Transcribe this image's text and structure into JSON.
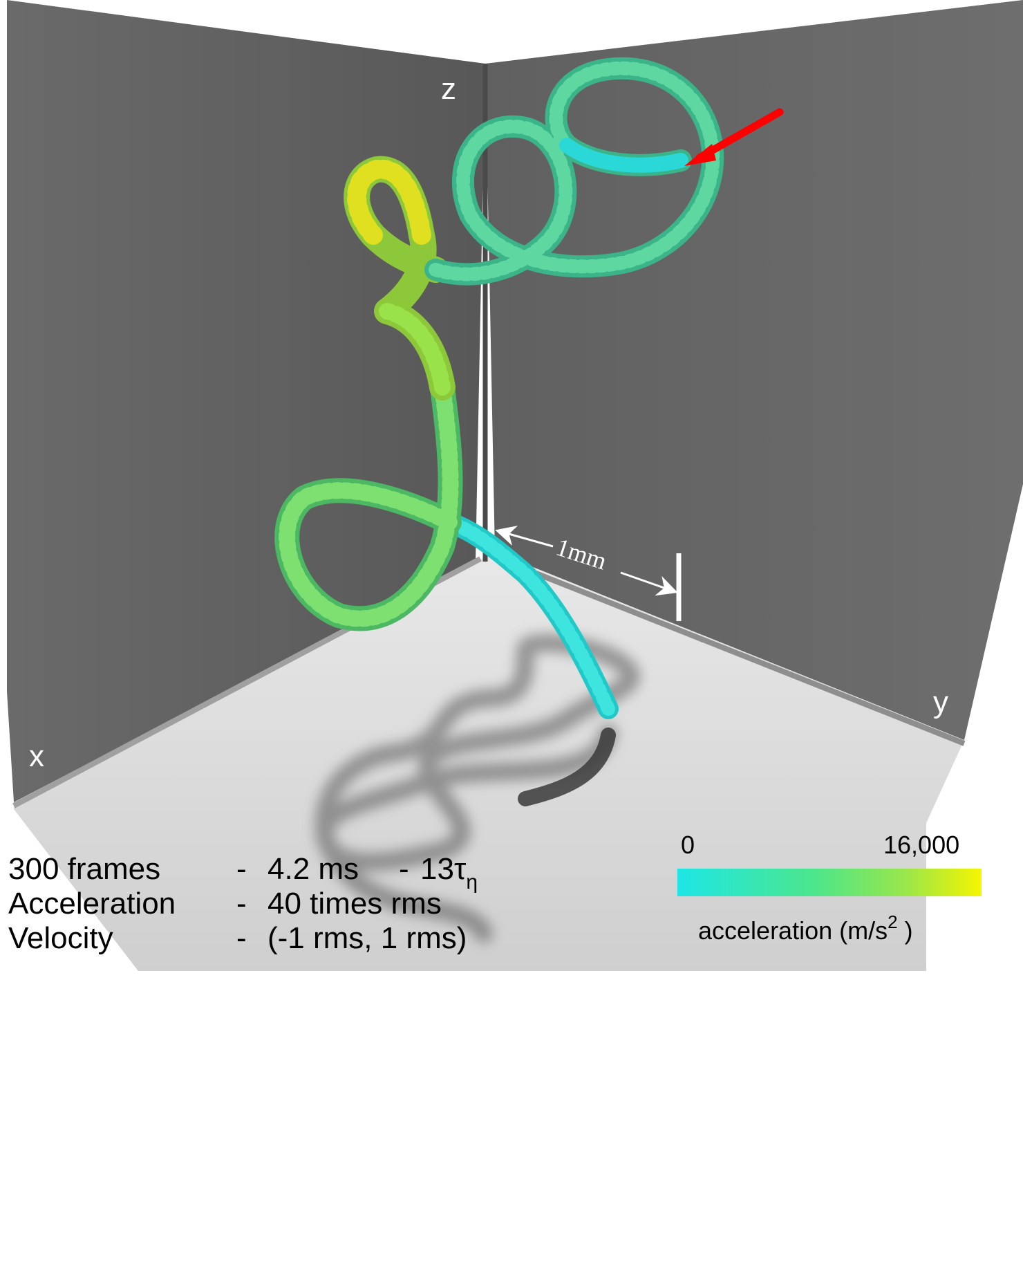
{
  "axes": {
    "x": "x",
    "y": "y",
    "z": "z"
  },
  "scale_bar": {
    "label": "1mm"
  },
  "info": {
    "frames": "300 frames",
    "frames_sep": "-",
    "frames_time": "4.2 ms",
    "frames_sep2": "-",
    "frames_tau": "13τ",
    "frames_tau_sub": "η",
    "accel_label": "Acceleration",
    "accel_sep": "-",
    "accel_value": "40 times rms",
    "vel_label": "Velocity",
    "vel_sep": "-",
    "vel_value": "(-1 rms, 1 rms)"
  },
  "colorbar": {
    "min_label": "0",
    "max_label": "16,000",
    "title": "acceleration (m/s",
    "title_sup": "2",
    "title_end": " )",
    "color_min": "#1ee6e6",
    "color_mid": "#4ce68c",
    "color_max": "#f5f500",
    "range": [
      0,
      16000
    ]
  },
  "colors": {
    "wall": "#646464",
    "floor": "#d8d8d8",
    "edge": "#9a9a9a",
    "arrow": "#ff0000",
    "shadow": "#444444"
  }
}
